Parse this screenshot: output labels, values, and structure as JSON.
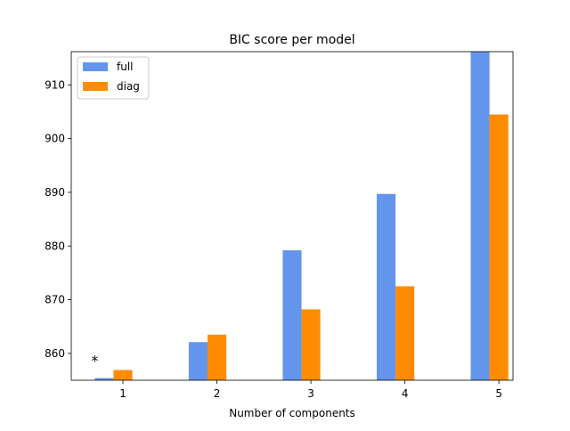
{
  "chart_data": {
    "type": "bar",
    "title": "BIC score per model",
    "xlabel": "Number of components",
    "ylabel": "",
    "x_ticks": [
      "1",
      "2",
      "3",
      "4",
      "5"
    ],
    "y_ticks": [
      "860",
      "870",
      "880",
      "890",
      "900",
      "910"
    ],
    "ylim": [
      855,
      916.2
    ],
    "series": [
      {
        "name": "full",
        "color": "#6495ED",
        "x": [
          1,
          2,
          3,
          4,
          5
        ],
        "values": [
          855.4,
          862.1,
          879.2,
          889.7,
          916.2
        ]
      },
      {
        "name": "diag",
        "color": "#FF8C00",
        "x": [
          1,
          2,
          3,
          4,
          5
        ],
        "values": [
          856.9,
          863.5,
          868.2,
          872.5,
          904.5
        ]
      }
    ],
    "annotation": {
      "text": "*",
      "x": 0.7,
      "y": 856.9
    },
    "legend_position": "upper-left",
    "grid": false
  }
}
